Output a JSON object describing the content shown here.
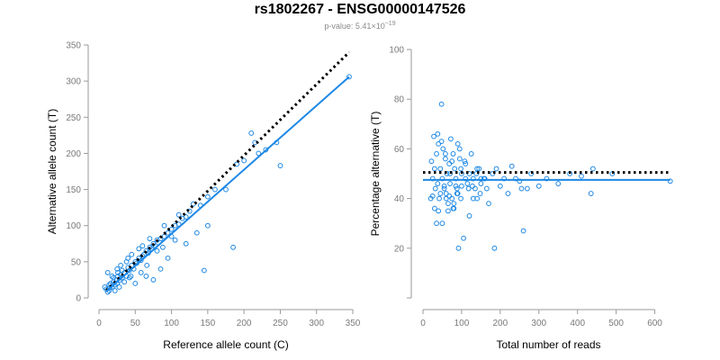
{
  "title": "rs1802267 - ENSG00000147526",
  "subtitle": {
    "prefix": "p-value: 5.41",
    "times": "×",
    "base": "10",
    "exponent": "−19"
  },
  "colors": {
    "points": "#1e88e5",
    "fit": "#1e88e5",
    "reference": "#000000",
    "axis": "#9a9a9a"
  },
  "chart_data": [
    {
      "type": "scatter",
      "title": "",
      "xlabel": "Reference allele count (C)",
      "ylabel": "Alternative allele count (T)",
      "xlim": [
        0,
        350
      ],
      "ylim": [
        0,
        350
      ],
      "xticks": [
        "0",
        "50",
        "100",
        "150",
        "200",
        "250",
        "300",
        "350"
      ],
      "yticks": [
        "0",
        "50",
        "100",
        "150",
        "200",
        "250",
        "300",
        "350"
      ],
      "grid": false,
      "fit_line": {
        "x": [
          10,
          345
        ],
        "y": [
          9,
          306
        ],
        "color": "#1e88e5",
        "style": "solid"
      },
      "reference_line": {
        "x": [
          10,
          345
        ],
        "y": [
          10,
          340
        ],
        "color": "#000000",
        "style": "dotted"
      },
      "points": {
        "x": [
          10,
          12,
          14,
          15,
          16,
          18,
          20,
          22,
          24,
          25,
          26,
          28,
          30,
          32,
          35,
          38,
          40,
          42,
          45,
          48,
          50,
          52,
          55,
          58,
          60,
          62,
          65,
          68,
          70,
          72,
          75,
          78,
          80,
          85,
          90,
          95,
          100,
          105,
          110,
          115,
          120,
          125,
          130,
          140,
          145,
          150,
          160,
          175,
          185,
          190,
          200,
          210,
          215,
          220,
          230,
          245,
          250,
          345,
          12,
          18,
          22,
          28,
          35,
          42,
          50,
          58,
          65,
          75,
          85,
          95,
          105,
          120,
          135,
          150,
          30,
          40,
          55,
          70,
          90,
          110,
          20,
          25,
          32,
          38,
          45,
          60,
          80,
          100,
          8,
          14,
          26,
          44,
          66,
          88
        ],
        "y": [
          12,
          8,
          18,
          14,
          20,
          15,
          22,
          18,
          25,
          20,
          30,
          24,
          32,
          28,
          35,
          30,
          42,
          38,
          45,
          40,
          50,
          48,
          55,
          52,
          58,
          60,
          65,
          62,
          70,
          68,
          75,
          72,
          80,
          82,
          85,
          90,
          95,
          100,
          102,
          110,
          112,
          120,
          130,
          128,
          38,
          140,
          150,
          150,
          70,
          185,
          190,
          228,
          215,
          200,
          205,
          215,
          183,
          306,
          35,
          30,
          10,
          15,
          22,
          28,
          20,
          35,
          30,
          25,
          40,
          55,
          80,
          75,
          90,
          100,
          45,
          55,
          68,
          82,
          100,
          115,
          28,
          40,
          38,
          50,
          60,
          72,
          65,
          85,
          15,
          10,
          35,
          30,
          45,
          70
        ]
      }
    },
    {
      "type": "scatter",
      "title": "",
      "xlabel": "Total number of reads",
      "ylabel": "Percentage alternative (T)",
      "xlim": [
        0,
        650
      ],
      "ylim": [
        0,
        100
      ],
      "xticks": [
        "0",
        "100",
        "200",
        "300",
        "400",
        "500",
        "600"
      ],
      "yticks": [
        "20",
        "40",
        "60",
        "80",
        "100"
      ],
      "grid": false,
      "fit_line": {
        "x": [
          0,
          640
        ],
        "y": [
          47.5,
          47.5
        ],
        "color": "#1e88e5",
        "style": "solid"
      },
      "reference_line": {
        "x": [
          0,
          640
        ],
        "y": [
          50.5,
          50.5
        ],
        "color": "#000000",
        "style": "dotted"
      },
      "points": {
        "x": [
          22,
          25,
          28,
          30,
          32,
          35,
          38,
          40,
          42,
          45,
          48,
          50,
          52,
          55,
          58,
          60,
          62,
          65,
          68,
          70,
          72,
          75,
          78,
          80,
          82,
          85,
          88,
          90,
          92,
          95,
          98,
          100,
          105,
          110,
          115,
          120,
          125,
          130,
          135,
          140,
          145,
          150,
          160,
          170,
          180,
          190,
          200,
          210,
          220,
          230,
          240,
          250,
          260,
          270,
          280,
          300,
          320,
          350,
          380,
          410,
          435,
          440,
          490,
          640,
          25,
          30,
          35,
          40,
          45,
          50,
          55,
          60,
          65,
          70,
          75,
          80,
          85,
          90,
          95,
          100,
          110,
          120,
          130,
          140,
          150,
          165,
          185,
          255,
          20,
          38,
          48,
          58,
          68,
          78,
          88,
          98,
          108,
          118,
          128,
          138,
          148,
          158
        ],
        "y": [
          55,
          48,
          65,
          52,
          44,
          58,
          46,
          62,
          40,
          52,
          78,
          48,
          60,
          44,
          56,
          42,
          50,
          38,
          54,
          46,
          64,
          40,
          58,
          36,
          52,
          48,
          44,
          62,
          20,
          56,
          40,
          50,
          24,
          54,
          46,
          33,
          58,
          48,
          44,
          40,
          52,
          46,
          48,
          38,
          50,
          52,
          45,
          48,
          42,
          53,
          48,
          47,
          27,
          44,
          50,
          45,
          48,
          46,
          50,
          49,
          42,
          52,
          50,
          47,
          41,
          36,
          30,
          35,
          42,
          30,
          45,
          40,
          35,
          50,
          55,
          38,
          45,
          42,
          60,
          45,
          48,
          50,
          40,
          52,
          48,
          44,
          20,
          44,
          40,
          66,
          63,
          58,
          41,
          36,
          42,
          52,
          55,
          44,
          45,
          50,
          42,
          48
        ]
      }
    }
  ]
}
